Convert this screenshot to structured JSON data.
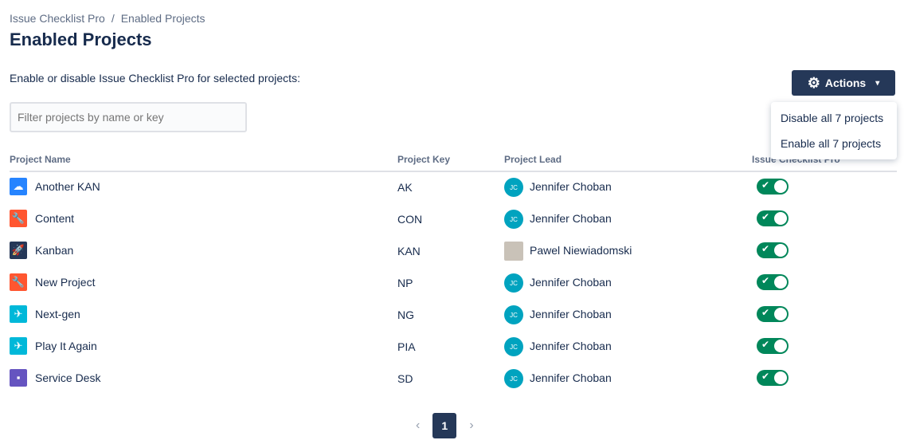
{
  "breadcrumb": [
    "Issue Checklist Pro",
    "Enabled Projects"
  ],
  "title": "Enabled Projects",
  "description": "Enable or disable Issue Checklist Pro for selected projects:",
  "actions": {
    "label": "Actions",
    "menu": [
      "Disable all 7 projects",
      "Enable all 7 projects"
    ]
  },
  "filter": {
    "placeholder": "Filter projects by name or key",
    "value": ""
  },
  "columns": [
    "Project Name",
    "Project Key",
    "Project Lead",
    "Issue Checklist Pro"
  ],
  "rows": [
    {
      "name": "Another KAN",
      "key": "AK",
      "lead": "Jennifer Choban",
      "initials": "JC",
      "icon": "cloud-icon",
      "color": "#2684ff",
      "enabled": true
    },
    {
      "name": "Content",
      "key": "CON",
      "lead": "Jennifer Choban",
      "initials": "JC",
      "icon": "wrench-icon",
      "color": "#ff5630",
      "enabled": true
    },
    {
      "name": "Kanban",
      "key": "KAN",
      "lead": "Pawel Niewiadomski",
      "initials": "",
      "icon": "rocket-icon",
      "color": "#253858",
      "enabled": true
    },
    {
      "name": "New Project",
      "key": "NP",
      "lead": "Jennifer Choban",
      "initials": "JC",
      "icon": "wrench-icon",
      "color": "#ff5630",
      "enabled": true
    },
    {
      "name": "Next-gen",
      "key": "NG",
      "lead": "Jennifer Choban",
      "initials": "JC",
      "icon": "plane-icon",
      "color": "#00b8d9",
      "enabled": true
    },
    {
      "name": "Play It Again",
      "key": "PIA",
      "lead": "Jennifer Choban",
      "initials": "JC",
      "icon": "plane-icon",
      "color": "#00b8d9",
      "enabled": true
    },
    {
      "name": "Service Desk",
      "key": "SD",
      "lead": "Jennifer Choban",
      "initials": "JC",
      "icon": "drill-icon",
      "color": "#6554c0",
      "enabled": true
    }
  ],
  "pagination": {
    "current": "1",
    "prev": "‹",
    "next": "›"
  }
}
